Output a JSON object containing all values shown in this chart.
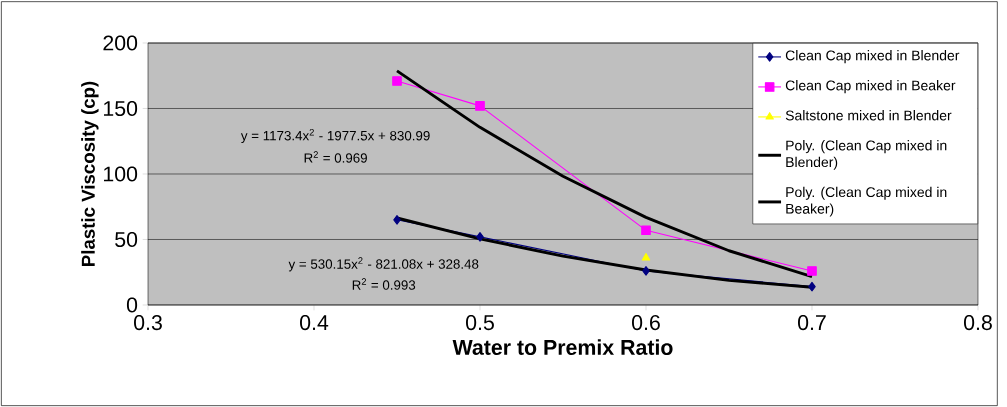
{
  "chart_data": {
    "type": "line",
    "xlabel": "Water to Premix Ratio",
    "ylabel": "Plastic Viscosity (cp)",
    "xlim": [
      0.3,
      0.8
    ],
    "xticks": [
      0.3,
      0.4,
      0.5,
      0.6,
      0.7,
      0.8
    ],
    "ylim": [
      0,
      200
    ],
    "yticks": [
      0,
      50,
      100,
      150,
      200
    ],
    "grid": "y",
    "legend": "top right",
    "line_style": "solid",
    "series": [
      {
        "name": "Clean Cap mixed in Blender",
        "color": "#000080",
        "marker": "diamond",
        "x": [
          0.45,
          0.5,
          0.6,
          0.7
        ],
        "values": [
          65,
          52,
          26,
          14
        ]
      },
      {
        "name": "Clean Cap mixed in Beaker",
        "color": "#ff00ff",
        "marker": "square",
        "x": [
          0.45,
          0.5,
          0.6,
          0.7
        ],
        "values": [
          171,
          152,
          57,
          26
        ]
      },
      {
        "name": "Saltstone mixed in Blender",
        "color": "#ffff00",
        "marker": "triangle",
        "x": [
          0.6
        ],
        "values": [
          36
        ]
      },
      {
        "name": "Poly. (Clean Cap mixed in Blender)",
        "color": "#000000",
        "marker": "none",
        "x": [
          0.45,
          0.5,
          0.55,
          0.6,
          0.65,
          0.7
        ],
        "values": [
          66.4,
          50.5,
          37.3,
          26.7,
          18.8,
          13.5
        ]
      },
      {
        "name": "Poly. (Clean Cap mixed in Beaker)",
        "color": "#000000",
        "marker": "none",
        "x": [
          0.45,
          0.5,
          0.55,
          0.6,
          0.65,
          0.7
        ],
        "values": [
          178.7,
          135.6,
          98.3,
          66.9,
          41.4,
          21.7
        ]
      }
    ],
    "annotations": [
      "y = 1173.4x$^{2}$ - 1977.5x + 830.99",
      "R$^{2}$ = 0.969",
      "y = 530.15x$^{2}$ - 821.08x + 328.48",
      "R$^{2}$ = 0.993"
    ]
  }
}
